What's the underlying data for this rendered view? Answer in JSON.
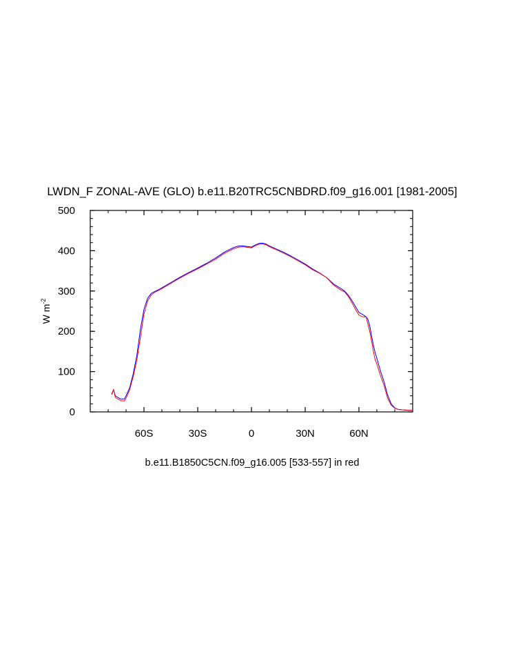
{
  "chart_data": {
    "type": "line",
    "title": "LWDN_F ZONAL-AVE (GLO) b.e11.B20TRC5CNBDRD.f09_g16.001 [1981-2005]",
    "subtitle": "b.e11.B1850C5CN.f09_g16.005 [533-557] in red",
    "ylabel": "W m",
    "ylabel_superscript": "-2",
    "xlabel": "",
    "xlim": [
      -90,
      90
    ],
    "ylim": [
      0,
      500
    ],
    "x_ticks": [
      {
        "value": -60,
        "label": "60S"
      },
      {
        "value": -30,
        "label": "30S"
      },
      {
        "value": 0,
        "label": "0"
      },
      {
        "value": 30,
        "label": "30N"
      },
      {
        "value": 60,
        "label": "60N"
      }
    ],
    "y_ticks": [
      {
        "value": 0,
        "label": "0"
      },
      {
        "value": 100,
        "label": "100"
      },
      {
        "value": 200,
        "label": "200"
      },
      {
        "value": 300,
        "label": "300"
      },
      {
        "value": 400,
        "label": "400"
      },
      {
        "value": 500,
        "label": "500"
      }
    ],
    "y_minor_step": 20,
    "x_minor_step": 10,
    "grid": false,
    "series": [
      {
        "color": "#0000ff",
        "x": [
          -78,
          -77,
          -76,
          -75,
          -73,
          -71,
          -70,
          -68,
          -66,
          -64,
          -62,
          -60,
          -58,
          -56,
          -54,
          -52,
          -50,
          -45,
          -40,
          -35,
          -30,
          -25,
          -20,
          -15,
          -10,
          -7,
          -5,
          -3,
          0,
          2,
          4,
          6,
          8,
          10,
          14,
          18,
          22,
          26,
          30,
          34,
          38,
          42,
          46,
          50,
          52,
          54,
          56,
          58,
          60,
          62,
          64,
          65,
          66,
          67,
          68,
          69,
          70,
          72,
          74,
          76,
          78,
          80,
          82,
          85,
          88,
          90
        ],
        "y": [
          43,
          55,
          40,
          37,
          32,
          32,
          40,
          60,
          95,
          140,
          205,
          255,
          282,
          294,
          299,
          303,
          308,
          321,
          334,
          346,
          357,
          369,
          382,
          397,
          408,
          412,
          412,
          411,
          409,
          414,
          418,
          419,
          417,
          412,
          404,
          396,
          387,
          377,
          367,
          355,
          345,
          333,
          317,
          306,
          300,
          290,
          277,
          262,
          247,
          242,
          236,
          230,
          214,
          190,
          167,
          148,
          133,
          102,
          75,
          42,
          20,
          10,
          6,
          5,
          4,
          4
        ]
      },
      {
        "color": "#ff0000",
        "x": [
          -78,
          -77,
          -76,
          -75,
          -73,
          -71,
          -70,
          -68,
          -66,
          -64,
          -62,
          -60,
          -58,
          -56,
          -54,
          -52,
          -50,
          -45,
          -40,
          -35,
          -30,
          -25,
          -20,
          -15,
          -10,
          -7,
          -5,
          -3,
          0,
          2,
          4,
          6,
          8,
          10,
          14,
          18,
          22,
          26,
          30,
          34,
          38,
          42,
          46,
          50,
          52,
          54,
          56,
          58,
          60,
          62,
          64,
          65,
          66,
          67,
          68,
          69,
          70,
          72,
          74,
          76,
          78,
          80,
          82,
          85,
          88,
          90
        ],
        "y": [
          45,
          56,
          36,
          33,
          28,
          27,
          34,
          55,
          88,
          128,
          185,
          243,
          275,
          290,
          297,
          301,
          306,
          319,
          332,
          344,
          355,
          367,
          379,
          394,
          405,
          409,
          410,
          409,
          407,
          412,
          416,
          417,
          415,
          410,
          402,
          394,
          385,
          375,
          365,
          353,
          344,
          333,
          314,
          302,
          298,
          287,
          272,
          255,
          240,
          236,
          236,
          218,
          200,
          177,
          152,
          130,
          119,
          90,
          66,
          34,
          17,
          9,
          6,
          5,
          4,
          4
        ]
      }
    ]
  }
}
